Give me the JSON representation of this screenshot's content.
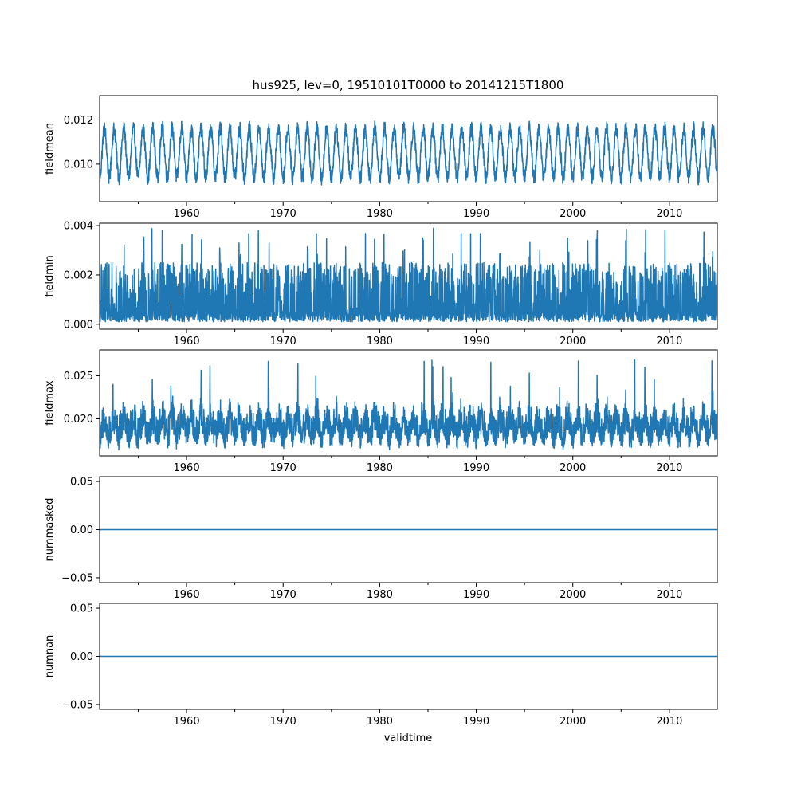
{
  "chart_data": {
    "type": "line",
    "title": "hus925, lev=0, 19510101T0000 to 20141215T1800",
    "xlabel": "validtime",
    "x_range": [
      1951.0,
      2014.96
    ],
    "x_major_ticks": [
      1960,
      1970,
      1980,
      1990,
      2000,
      2010
    ],
    "x_minor_ticks": [
      1955,
      1965,
      1975,
      1985,
      1995,
      2005
    ],
    "series_color": "#1f77b4",
    "panels": [
      {
        "ylabel": "fieldmean",
        "ylim": [
          0.0083,
          0.0131
        ],
        "yticks": [
          0.01,
          0.012
        ],
        "ytick_labels": [
          "0.010",
          "0.012"
        ],
        "kind": "seasonal",
        "base": 0.0105,
        "amplitude": 0.0011,
        "noise": 0.00035,
        "typical_range": [
          0.0088,
          0.0126
        ]
      },
      {
        "ylabel": "fieldmin",
        "ylim": [
          -0.0002,
          0.0041
        ],
        "yticks": [
          0.0,
          0.002,
          0.004
        ],
        "ytick_labels": [
          "0.000",
          "0.002",
          "0.004"
        ],
        "kind": "spiky",
        "typical_range": [
          0.0001,
          0.0025
        ],
        "peak_range": [
          0.0027,
          0.0039
        ]
      },
      {
        "ylabel": "fieldmax",
        "ylim": [
          0.0157,
          0.028
        ],
        "yticks": [
          0.02,
          0.025
        ],
        "ytick_labels": [
          "0.020",
          "0.025"
        ],
        "kind": "skewed",
        "base": 0.018,
        "typical_range": [
          0.0168,
          0.0215
        ],
        "peak_range": [
          0.022,
          0.0274
        ]
      },
      {
        "ylabel": "nummasked",
        "ylim": [
          -0.055,
          0.055
        ],
        "yticks": [
          -0.05,
          0.0,
          0.05
        ],
        "ytick_labels": [
          "−0.05",
          "0.00",
          "0.05"
        ],
        "kind": "constant",
        "value": 0
      },
      {
        "ylabel": "numnan",
        "ylim": [
          -0.055,
          0.055
        ],
        "yticks": [
          -0.05,
          0.0,
          0.05
        ],
        "ytick_labels": [
          "−0.05",
          "0.00",
          "0.05"
        ],
        "kind": "constant",
        "value": 0
      }
    ]
  }
}
